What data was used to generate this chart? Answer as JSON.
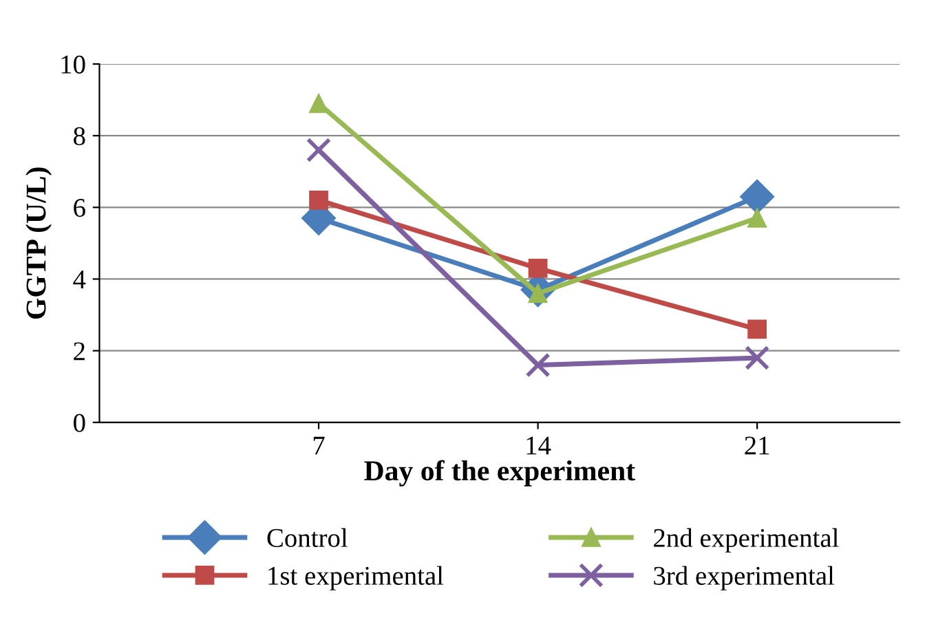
{
  "chart_data": {
    "type": "line",
    "xlabel": "Day of the experiment",
    "ylabel": "GGTP (U/L)",
    "categories": [
      "7",
      "14",
      "21"
    ],
    "series": [
      {
        "name": "Control",
        "color": "#4a7ebb",
        "marker": "diamond",
        "values": [
          5.7,
          3.7,
          6.3
        ]
      },
      {
        "name": "1st experimental",
        "color": "#be4b48",
        "marker": "square",
        "values": [
          6.2,
          4.3,
          2.6
        ]
      },
      {
        "name": "2nd experimental",
        "color": "#98b954",
        "marker": "triangle",
        "values": [
          8.9,
          3.6,
          5.7
        ]
      },
      {
        "name": "3rd experimental",
        "color": "#7d60a0",
        "marker": "cross",
        "values": [
          7.6,
          1.6,
          1.8
        ]
      }
    ],
    "ylim": [
      0,
      10
    ],
    "yticks": [
      0,
      2,
      4,
      6,
      8,
      10
    ],
    "grid": "y",
    "legend": "bottom"
  }
}
